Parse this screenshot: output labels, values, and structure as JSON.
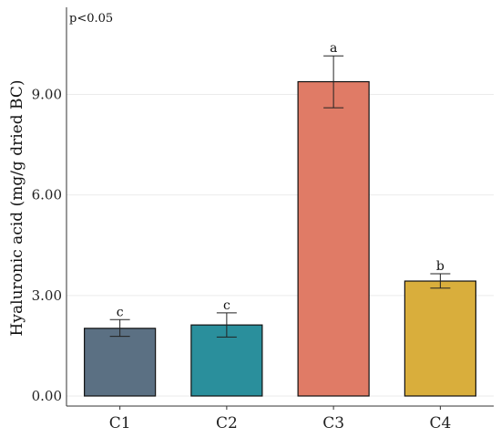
{
  "chart_data": {
    "type": "bar",
    "title": "",
    "annotation": "p<0.05",
    "xlabel": "",
    "ylabel": "Hyaluronic acid (mg/g dried BC)",
    "categories": [
      "C1",
      "C2",
      "C3",
      "C4"
    ],
    "values": [
      2.02,
      2.12,
      9.38,
      3.43
    ],
    "error_low": [
      1.78,
      1.76,
      8.6,
      3.22
    ],
    "error_high": [
      2.28,
      2.48,
      10.15,
      3.65
    ],
    "significance": [
      "c",
      "c",
      "a",
      "b"
    ],
    "colors": [
      "#5b7083",
      "#2a8f9c",
      "#e07b66",
      "#d9ae3c"
    ],
    "ylim": [
      -0.3,
      11.6
    ],
    "yticks": [
      0,
      3,
      6,
      9
    ],
    "ytick_labels": [
      "0.00",
      "3.00",
      "6.00",
      "9.00"
    ],
    "grid": true,
    "legend": "none"
  }
}
